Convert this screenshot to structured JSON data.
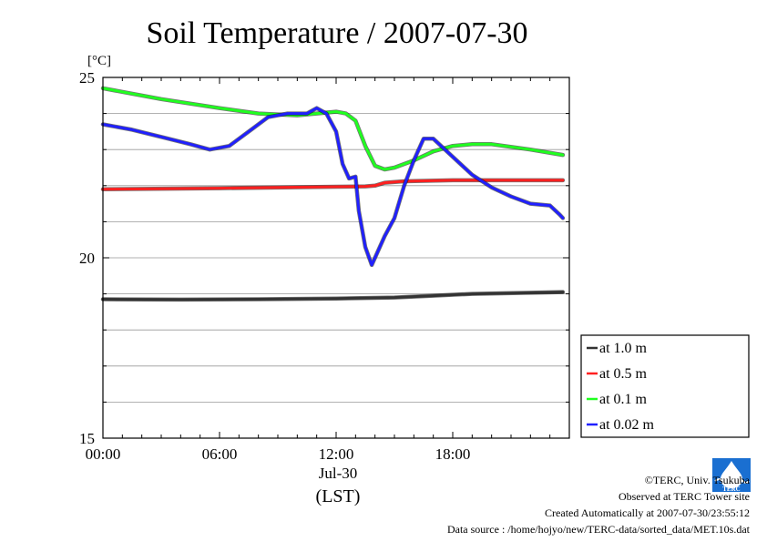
{
  "chart_data": {
    "type": "line",
    "title": "Soil Temperature / 2007-07-30",
    "ylabel": "[°C]",
    "xlabel": "(LST)",
    "x_date_label": "Jul-30",
    "ylim": [
      15,
      25
    ],
    "y_ticks": [
      15,
      20,
      25
    ],
    "y_tick_labels": [
      "15",
      "20",
      "25"
    ],
    "x_ticks": [
      "00:00",
      "06:00",
      "12:00",
      "18:00"
    ],
    "xlim": [
      "00:00",
      "24:00"
    ],
    "grid": true,
    "legend_position": "bottom-right, outside plot",
    "series": [
      {
        "name": "at 1.0 m",
        "color": "#333333",
        "x": [
          "00:00",
          "04:00",
          "08:00",
          "12:00",
          "15:00",
          "17:00",
          "19:00",
          "22:00",
          "23:40"
        ],
        "values": [
          18.85,
          18.84,
          18.85,
          18.87,
          18.9,
          18.95,
          19.0,
          19.03,
          19.05
        ]
      },
      {
        "name": "at 0.5 m",
        "color": "#ff2020",
        "x": [
          "00:00",
          "06:00",
          "12:00",
          "13:30",
          "14:00",
          "14:30",
          "15:30",
          "18:00",
          "21:00",
          "23:40"
        ],
        "values": [
          21.9,
          21.93,
          21.97,
          21.98,
          22.0,
          22.08,
          22.12,
          22.15,
          22.15,
          22.15
        ]
      },
      {
        "name": "at 0.1 m",
        "color": "#20ff20",
        "x": [
          "00:00",
          "03:00",
          "06:00",
          "08:00",
          "10:00",
          "12:00",
          "12:30",
          "13:00",
          "13:30",
          "14:00",
          "14:30",
          "15:00",
          "16:00",
          "17:00",
          "18:00",
          "19:00",
          "20:00",
          "22:00",
          "23:40"
        ],
        "values": [
          24.7,
          24.4,
          24.15,
          24.0,
          23.95,
          24.05,
          24.0,
          23.8,
          23.1,
          22.55,
          22.45,
          22.5,
          22.7,
          22.95,
          23.1,
          23.15,
          23.15,
          23.0,
          22.85
        ]
      },
      {
        "name": "at 0.02 m",
        "color": "#2020ff",
        "x": [
          "00:00",
          "01:30",
          "03:00",
          "04:30",
          "05:30",
          "06:30",
          "07:30",
          "08:30",
          "09:30",
          "10:30",
          "11:00",
          "11:30",
          "12:00",
          "12:20",
          "12:40",
          "13:00",
          "13:10",
          "13:30",
          "13:50",
          "14:10",
          "14:30",
          "15:00",
          "15:30",
          "16:00",
          "16:30",
          "17:00",
          "18:00",
          "19:00",
          "20:00",
          "21:00",
          "22:00",
          "23:00",
          "23:30",
          "23:40"
        ],
        "values": [
          23.7,
          23.55,
          23.35,
          23.15,
          23.0,
          23.1,
          23.5,
          23.9,
          24.0,
          24.0,
          24.15,
          24.0,
          23.5,
          22.6,
          22.2,
          22.25,
          21.3,
          20.3,
          19.8,
          20.2,
          20.6,
          21.1,
          22.0,
          22.7,
          23.3,
          23.3,
          22.8,
          22.3,
          21.95,
          21.7,
          21.5,
          21.45,
          21.2,
          21.1
        ]
      }
    ]
  },
  "footer": {
    "copyright": "©TERC, Univ. Tsukuba",
    "observed": "Observed at TERC Tower site",
    "created": "Created Automatically at 2007-07-30/23:55:12",
    "source": "Data source : /home/hojyo/new/TERC-data/sorted_data/MET.10s.dat",
    "logo_text": "TERC"
  }
}
